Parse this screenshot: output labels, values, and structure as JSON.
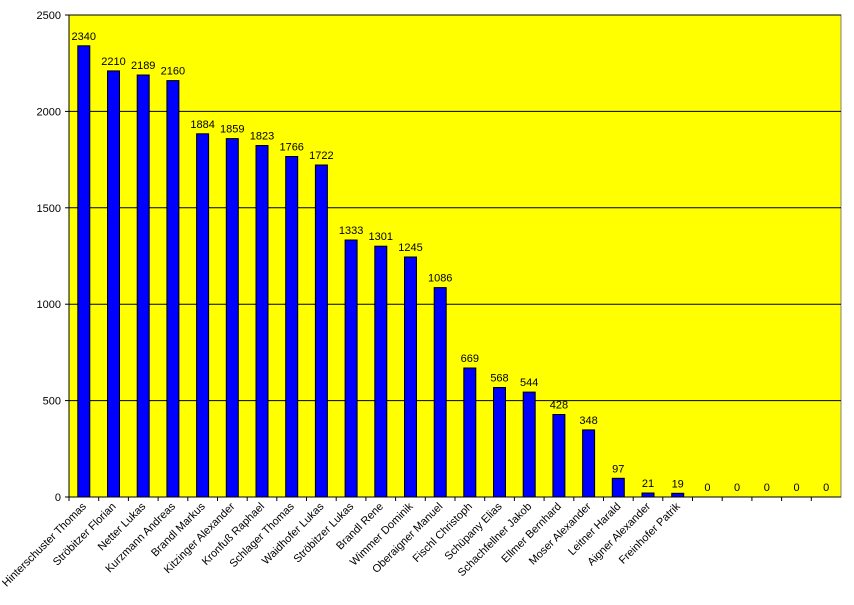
{
  "chart_data": {
    "type": "bar",
    "title": "",
    "xlabel": "",
    "ylabel": "",
    "ylim": [
      0,
      2500
    ],
    "yticks": [
      0,
      500,
      1000,
      1500,
      2000,
      2500
    ],
    "grid": true,
    "legend": "none",
    "colors": {
      "plot_background": "#ffff00",
      "bar": "#0000ff",
      "bar_edge": "#000000",
      "grid": "#000000"
    },
    "categories": [
      "Hinterschuster Thomas",
      "Ströbitzer Florian",
      "Netter Lukas",
      "Kurzmann Andreas",
      "Brandl Markus",
      "Kitzinger Alexander",
      "Kronfuß Raphael",
      "Schlager Thomas",
      "Waidhofer Lukas",
      "Ströbitzer Lukas",
      "Brandl Rene",
      "Wimmer Dominik",
      "Oberaigner Manuel",
      "Fischl Christoph",
      "Schüpany Elias",
      "Schachfellner Jakob",
      "Ellmer Bernhard",
      "Moser Alexander",
      "Leitner Harald",
      "Aigner Alexander",
      "Freinhofer Patrik",
      "",
      "",
      "",
      "",
      ""
    ],
    "values": [
      2340,
      2210,
      2189,
      2160,
      1884,
      1859,
      1823,
      1766,
      1722,
      1333,
      1301,
      1245,
      1086,
      669,
      568,
      544,
      428,
      348,
      97,
      21,
      19,
      0,
      0,
      0,
      0,
      0
    ]
  }
}
